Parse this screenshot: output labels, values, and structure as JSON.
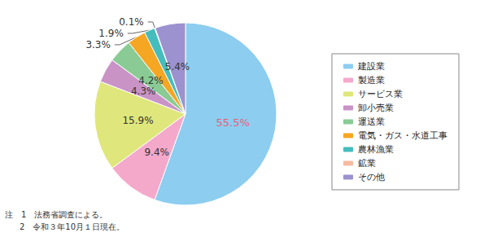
{
  "chart_data": {
    "type": "pie",
    "categories": [
      "建設業",
      "製造業",
      "サービス業",
      "卸小売業",
      "運送業",
      "電気・ガス・水道工事",
      "農林漁業",
      "鉱業",
      "その他"
    ],
    "values": [
      55.5,
      9.4,
      15.9,
      4.3,
      4.2,
      3.3,
      1.9,
      0.1,
      5.4
    ],
    "value_labels": [
      "55.5%",
      "9.4%",
      "15.9%",
      "4.3%",
      "4.2%",
      "3.3%",
      "1.9%",
      "0.1%",
      "5.4%"
    ],
    "colors": [
      "#8ccdf0",
      "#f4a9cb",
      "#dfe77c",
      "#c993c6",
      "#8acb95",
      "#f5a623",
      "#45bdbd",
      "#f6bba3",
      "#9b92cf"
    ],
    "data_labels": true,
    "legend": "right",
    "annotations": [
      "注　1　法務省調査による。",
      "2　令和３年10月１日現在。"
    ]
  }
}
